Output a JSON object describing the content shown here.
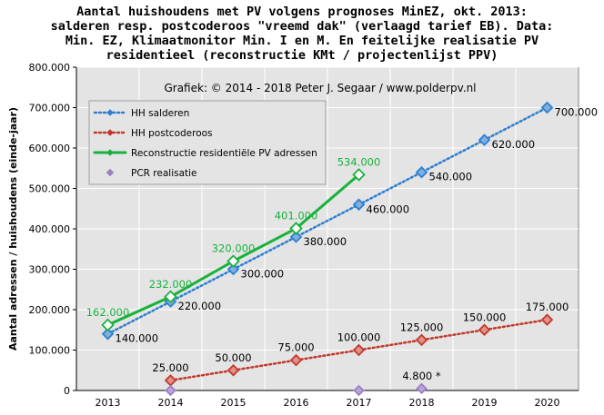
{
  "title_lines": [
    "Aantal huishoudens met PV volgens prognoses MinEZ, okt. 2013:",
    "salderen resp. postcoderoos \"vreemd dak\" (verlaagd tarief EB). Data:",
    "Min. EZ, Klimaatmonitor Min. I en M. En feitelijke realisatie PV",
    "residentieel (reconstructie KMt / projectenlijst PPV)"
  ],
  "credit": "Grafiek: © 2014 - 2018 Peter J. Segaar / www.polderpv.nl",
  "colors": {
    "plot_bg": "#e4e4e4",
    "grid": "#ffffff",
    "salderen": "#2e7fd0",
    "postcoderoos": "#c0392b",
    "reconstructie": "#18b23b",
    "pcr": "#9b7fc4"
  },
  "chart_data": {
    "type": "line",
    "title": "Aantal huishoudens met PV volgens prognoses MinEZ, okt. 2013: salderen resp. postcoderoos \"vreemd dak\" (verlaagd tarief EB). Data: Min. EZ, Klimaatmonitor Min. I en M. En feitelijke realisatie PV residentieel (reconstructie KMt / projectenlijst PPV)",
    "xlabel": "",
    "ylabel": "Aantal adressen / huishoudens (einde-jaar)",
    "x_categories": [
      "2013",
      "2014",
      "2015",
      "2016",
      "2017",
      "2018",
      "2019",
      "2020"
    ],
    "ylim": [
      0,
      800000
    ],
    "yticks": [
      0,
      100000,
      200000,
      300000,
      400000,
      500000,
      600000,
      700000,
      800000
    ],
    "ytick_labels": [
      "0",
      "100.000",
      "200.000",
      "300.000",
      "400.000",
      "500.000",
      "600.000",
      "700.000",
      "800.000"
    ],
    "grid": true,
    "legend_position": "top-left",
    "series": [
      {
        "name": "HH salderen",
        "style": "dotted",
        "marker": "diamond",
        "x": [
          "2013",
          "2014",
          "2015",
          "2016",
          "2017",
          "2018",
          "2019",
          "2020"
        ],
        "values": [
          140000,
          220000,
          300000,
          380000,
          460000,
          540000,
          620000,
          700000
        ],
        "labels": [
          "140.000",
          "220.000",
          "300.000",
          "380.000",
          "460.000",
          "540.000",
          "620.000",
          "700.000"
        ]
      },
      {
        "name": "HH postcoderoos",
        "style": "dotted",
        "marker": "diamond",
        "x": [
          "2014",
          "2015",
          "2016",
          "2017",
          "2018",
          "2019",
          "2020"
        ],
        "values": [
          25000,
          50000,
          75000,
          100000,
          125000,
          150000,
          175000
        ],
        "labels": [
          "25.000",
          "50.000",
          "75.000",
          "100.000",
          "125.000",
          "150.000",
          "175.000"
        ]
      },
      {
        "name": "Reconstructie residentiële PV adressen",
        "style": "solid",
        "marker": "diamond",
        "x": [
          "2013",
          "2014",
          "2015",
          "2016",
          "2017"
        ],
        "values": [
          162000,
          232000,
          320000,
          401000,
          534000
        ],
        "labels": [
          "162.000",
          "232.000",
          "320.000",
          "401.000",
          "534.000"
        ]
      },
      {
        "name": "PCR realisatie",
        "style": "none",
        "marker": "diamond",
        "x": [
          "2014",
          "2017",
          "2018"
        ],
        "values": [
          0,
          0,
          4800
        ],
        "labels": [
          "",
          "",
          "4.800 *"
        ]
      }
    ]
  }
}
